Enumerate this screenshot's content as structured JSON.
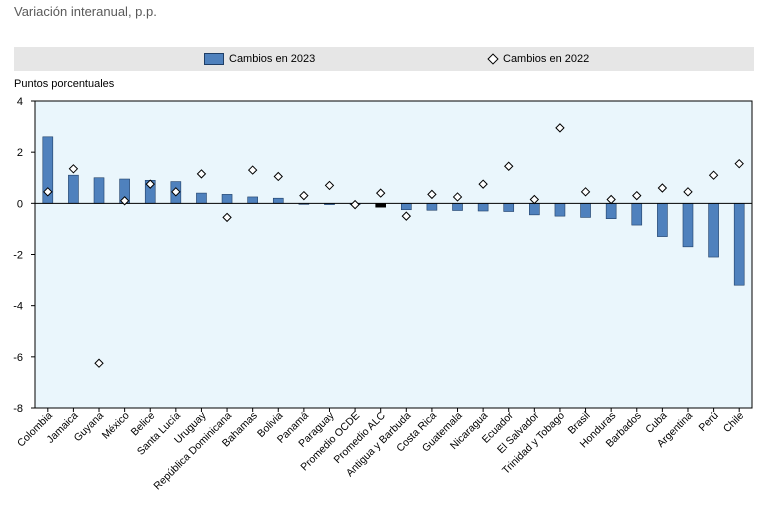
{
  "subtitle": "Variación interanual, p.p.",
  "legend": {
    "series1": "Cambios en 2023",
    "series2": "Cambios en 2022"
  },
  "colors": {
    "bar": "#4f81bd",
    "bar_highlight": "#000000",
    "bar_border": "#1f3e66",
    "plot_background": "#eaf6fc",
    "marker_stroke": "#000000"
  },
  "chart_data": {
    "type": "bar",
    "title": "",
    "ylabel": "Puntos porcentuales",
    "xlabel": "",
    "ylim": [
      -8,
      4
    ],
    "yticks": [
      4,
      2,
      0,
      -2,
      -4,
      -6,
      -8
    ],
    "highlight_categories": [
      "Promedio ALC"
    ],
    "categories": [
      "Colombia",
      "Jamaica",
      "Guyana",
      "México",
      "Belice",
      "Santa Lucía",
      "Uruguay",
      "República Dominicana",
      "Bahamas",
      "Bolivia",
      "Panamá",
      "Paraguay",
      "Promedio OCDE",
      "Promedio ALC",
      "Antigua y Barbuda",
      "Costa Rica",
      "Guatemala",
      "Nicaragua",
      "Ecuador",
      "El Salvador",
      "Trinidad y Tobago",
      "Brasil",
      "Honduras",
      "Barbados",
      "Cuba",
      "Argentina",
      "Perú",
      "Chile"
    ],
    "series": [
      {
        "name": "Cambios en 2023",
        "kind": "bar",
        "values": [
          2.6,
          1.1,
          1.0,
          0.95,
          0.9,
          0.85,
          0.4,
          0.35,
          0.25,
          0.2,
          0.0,
          -0.05,
          -0.05,
          -0.15,
          -0.25,
          -0.27,
          -0.28,
          -0.3,
          -0.32,
          -0.45,
          -0.5,
          -0.55,
          -0.6,
          -0.85,
          -1.3,
          -1.7,
          -2.1,
          -3.2
        ]
      },
      {
        "name": "Cambios en 2022",
        "kind": "marker",
        "values": [
          0.45,
          1.35,
          -6.25,
          0.1,
          0.75,
          0.45,
          1.15,
          -0.55,
          1.3,
          1.05,
          0.3,
          0.7,
          -0.05,
          0.4,
          -0.5,
          0.35,
          0.25,
          0.75,
          1.45,
          0.15,
          2.95,
          0.45,
          0.15,
          0.3,
          0.6,
          0.45,
          1.1,
          1.55
        ]
      }
    ]
  }
}
